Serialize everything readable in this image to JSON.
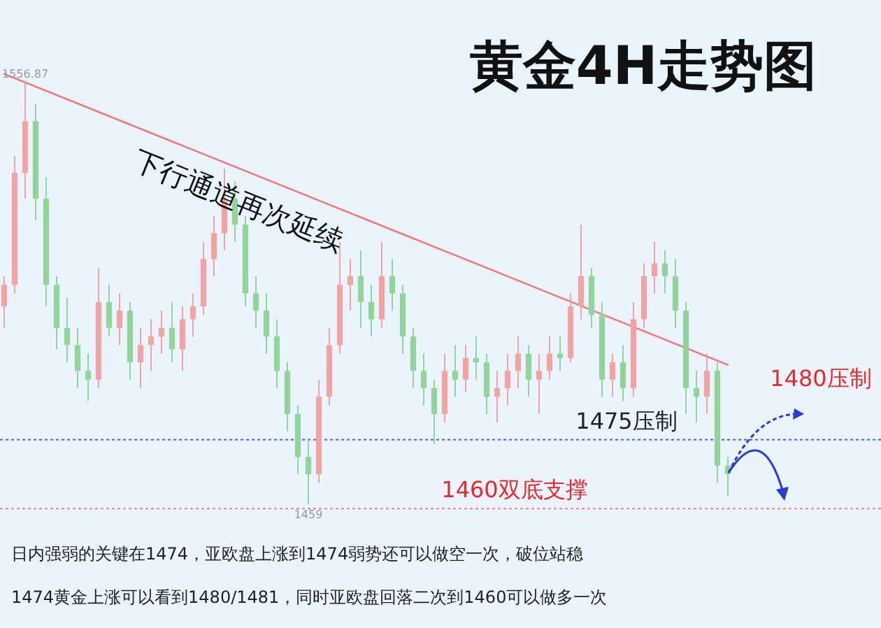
{
  "chart_data": {
    "type": "candlestick",
    "title": "黄金4H走势图",
    "categories": [
      null,
      null,
      null,
      null,
      null,
      null,
      null,
      null,
      null,
      null,
      null,
      null,
      null,
      null,
      null,
      null,
      null,
      null,
      null,
      null,
      null,
      null,
      null,
      null,
      null,
      null,
      null,
      null,
      null,
      null,
      null,
      null,
      null,
      null,
      null,
      null,
      null,
      null,
      null,
      null,
      null,
      null,
      null,
      null,
      null,
      null,
      null,
      null,
      null,
      null,
      null,
      null,
      null,
      null,
      null,
      null,
      null,
      null,
      null,
      null,
      null,
      null,
      null,
      null,
      null,
      null,
      null,
      null,
      null,
      null
    ],
    "ohlc": [
      [
        1505,
        1512,
        1500,
        1510
      ],
      [
        1510,
        1540,
        1508,
        1536
      ],
      [
        1536,
        1556.87,
        1530,
        1548
      ],
      [
        1548,
        1552,
        1525,
        1530
      ],
      [
        1530,
        1535,
        1505,
        1510
      ],
      [
        1510,
        1512,
        1495,
        1500
      ],
      [
        1500,
        1507,
        1492,
        1496
      ],
      [
        1496,
        1500,
        1486,
        1490
      ],
      [
        1490,
        1494,
        1483,
        1488
      ],
      [
        1488,
        1514,
        1486,
        1506
      ],
      [
        1506,
        1510,
        1498,
        1500
      ],
      [
        1500,
        1508,
        1496,
        1504
      ],
      [
        1504,
        1506,
        1488,
        1492
      ],
      [
        1492,
        1500,
        1486,
        1496
      ],
      [
        1496,
        1502,
        1490,
        1498
      ],
      [
        1498,
        1504,
        1494,
        1500
      ],
      [
        1500,
        1506,
        1492,
        1495
      ],
      [
        1495,
        1505,
        1490,
        1502
      ],
      [
        1502,
        1508,
        1498,
        1505
      ],
      [
        1505,
        1520,
        1503,
        1516
      ],
      [
        1516,
        1526,
        1512,
        1522
      ],
      [
        1522,
        1537,
        1518,
        1530
      ],
      [
        1530,
        1534,
        1520,
        1524
      ],
      [
        1524,
        1526,
        1505,
        1508
      ],
      [
        1508,
        1512,
        1500,
        1504
      ],
      [
        1504,
        1508,
        1494,
        1498
      ],
      [
        1498,
        1502,
        1486,
        1490
      ],
      [
        1490,
        1492,
        1476,
        1480
      ],
      [
        1480,
        1482,
        1466,
        1470
      ],
      [
        1470,
        1474,
        1459,
        1466
      ],
      [
        1466,
        1488,
        1464,
        1484
      ],
      [
        1484,
        1500,
        1482,
        1496
      ],
      [
        1496,
        1520,
        1494,
        1510
      ],
      [
        1510,
        1516,
        1504,
        1512
      ],
      [
        1512,
        1518,
        1500,
        1506
      ],
      [
        1506,
        1510,
        1498,
        1502
      ],
      [
        1502,
        1520,
        1500,
        1512
      ],
      [
        1512,
        1516,
        1504,
        1508
      ],
      [
        1508,
        1510,
        1494,
        1498
      ],
      [
        1498,
        1500,
        1486,
        1490
      ],
      [
        1490,
        1494,
        1482,
        1486
      ],
      [
        1486,
        1488,
        1473,
        1480
      ],
      [
        1480,
        1494,
        1478,
        1490
      ],
      [
        1490,
        1496,
        1484,
        1488
      ],
      [
        1488,
        1496,
        1485,
        1493
      ],
      [
        1493,
        1498,
        1488,
        1492
      ],
      [
        1492,
        1494,
        1480,
        1484
      ],
      [
        1484,
        1490,
        1478,
        1486
      ],
      [
        1486,
        1494,
        1482,
        1490
      ],
      [
        1490,
        1498,
        1486,
        1494
      ],
      [
        1494,
        1496,
        1484,
        1488
      ],
      [
        1488,
        1494,
        1480,
        1490
      ],
      [
        1490,
        1498,
        1488,
        1494
      ],
      [
        1494,
        1498,
        1490,
        1493
      ],
      [
        1493,
        1508,
        1492,
        1505
      ],
      [
        1505,
        1524,
        1502,
        1512
      ],
      [
        1512,
        1514,
        1500,
        1503
      ],
      [
        1503,
        1506,
        1484,
        1488
      ],
      [
        1488,
        1494,
        1484,
        1492
      ],
      [
        1492,
        1496,
        1483,
        1486
      ],
      [
        1486,
        1506,
        1484,
        1502
      ],
      [
        1502,
        1515,
        1500,
        1512
      ],
      [
        1512,
        1520,
        1508,
        1515
      ],
      [
        1515,
        1518,
        1508,
        1512
      ],
      [
        1512,
        1516,
        1500,
        1504
      ],
      [
        1504,
        1506,
        1480,
        1486
      ],
      [
        1486,
        1490,
        1478,
        1484
      ],
      [
        1484,
        1494,
        1480,
        1490
      ],
      [
        1490,
        1492,
        1464,
        1468
      ],
      [
        1468,
        1470,
        1461,
        1466
      ]
    ],
    "series": [
      {
        "type": "line",
        "color": "#f07c7c",
        "values": [
          1559.0,
          null,
          null,
          null,
          null,
          null,
          null,
          null,
          null,
          null,
          null,
          null,
          null,
          null,
          null,
          null,
          null,
          null,
          null,
          null,
          null,
          null,
          null,
          null,
          null,
          null,
          null,
          null,
          null,
          null,
          null,
          null,
          null,
          null,
          null,
          null,
          null,
          null,
          null,
          null,
          null,
          null,
          null,
          null,
          null,
          null,
          null,
          null,
          null,
          null,
          null,
          null,
          null,
          null,
          null,
          null,
          null,
          null,
          null,
          null,
          null,
          null,
          null,
          null,
          null,
          null,
          null,
          null,
          null,
          1491.4
        ]
      }
    ],
    "tick_labels": false,
    "ref_lines": [
      {
        "axis": "y",
        "value": 1474,
        "label": "1475压制",
        "color": "#4a5ae8",
        "line_style": "dotted"
      },
      {
        "axis": "y",
        "value": 1458,
        "label": "1460双底支撑",
        "color": "#f07c7c",
        "line_style": "dotted"
      }
    ],
    "annotations": [
      "下行通道再次延续",
      "1480压制",
      "日内强弱的关键在1474，亚欧盘上涨到1474弱势还可以做空一次，破位站稳",
      "1474黄金上涨可以看到1480/1481，同时亚欧盘回落二次到1460可以做多一次",
      {
        "text": "1556.87",
        "y": 1556.87
      },
      {
        "text": "1459",
        "y": 1459
      }
    ]
  }
}
